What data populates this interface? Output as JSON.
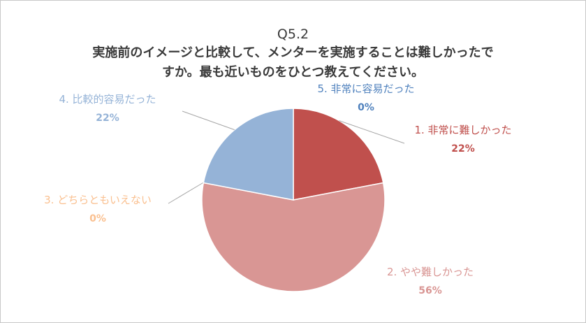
{
  "title": {
    "line1": "Q5.2",
    "line2": "実施前のイメージと比較して、メンターを実施することは難しかったで",
    "line3": "すか。最も近いものをひとつ教えてください。"
  },
  "chart_data": {
    "type": "pie",
    "title": "Q5.2 実施前のイメージと比較して、メンターを実施することは難しかったですか。最も近いものをひとつ教えてください。",
    "start_angle_deg": 0,
    "direction": "clockwise",
    "slices": [
      {
        "label": "1. 非常に難しかった",
        "value": 22,
        "display": "22%",
        "color": "#c0504d"
      },
      {
        "label": "2. やや難しかった",
        "value": 56,
        "display": "56%",
        "color": "#d99694"
      },
      {
        "label": "3. どちらともいえない",
        "value": 0,
        "display": "0%",
        "color": "#fac090"
      },
      {
        "label": "4. 比較的容易だった",
        "value": 22,
        "display": "22%",
        "color": "#95b3d7"
      },
      {
        "label": "5. 非常に容易だった",
        "value": 0,
        "display": "0%",
        "color": "#4f81bd"
      }
    ],
    "label_colors": [
      "#c0504d",
      "#d99694",
      "#fac090",
      "#95b3d7",
      "#4f81bd"
    ],
    "legend": "none"
  }
}
